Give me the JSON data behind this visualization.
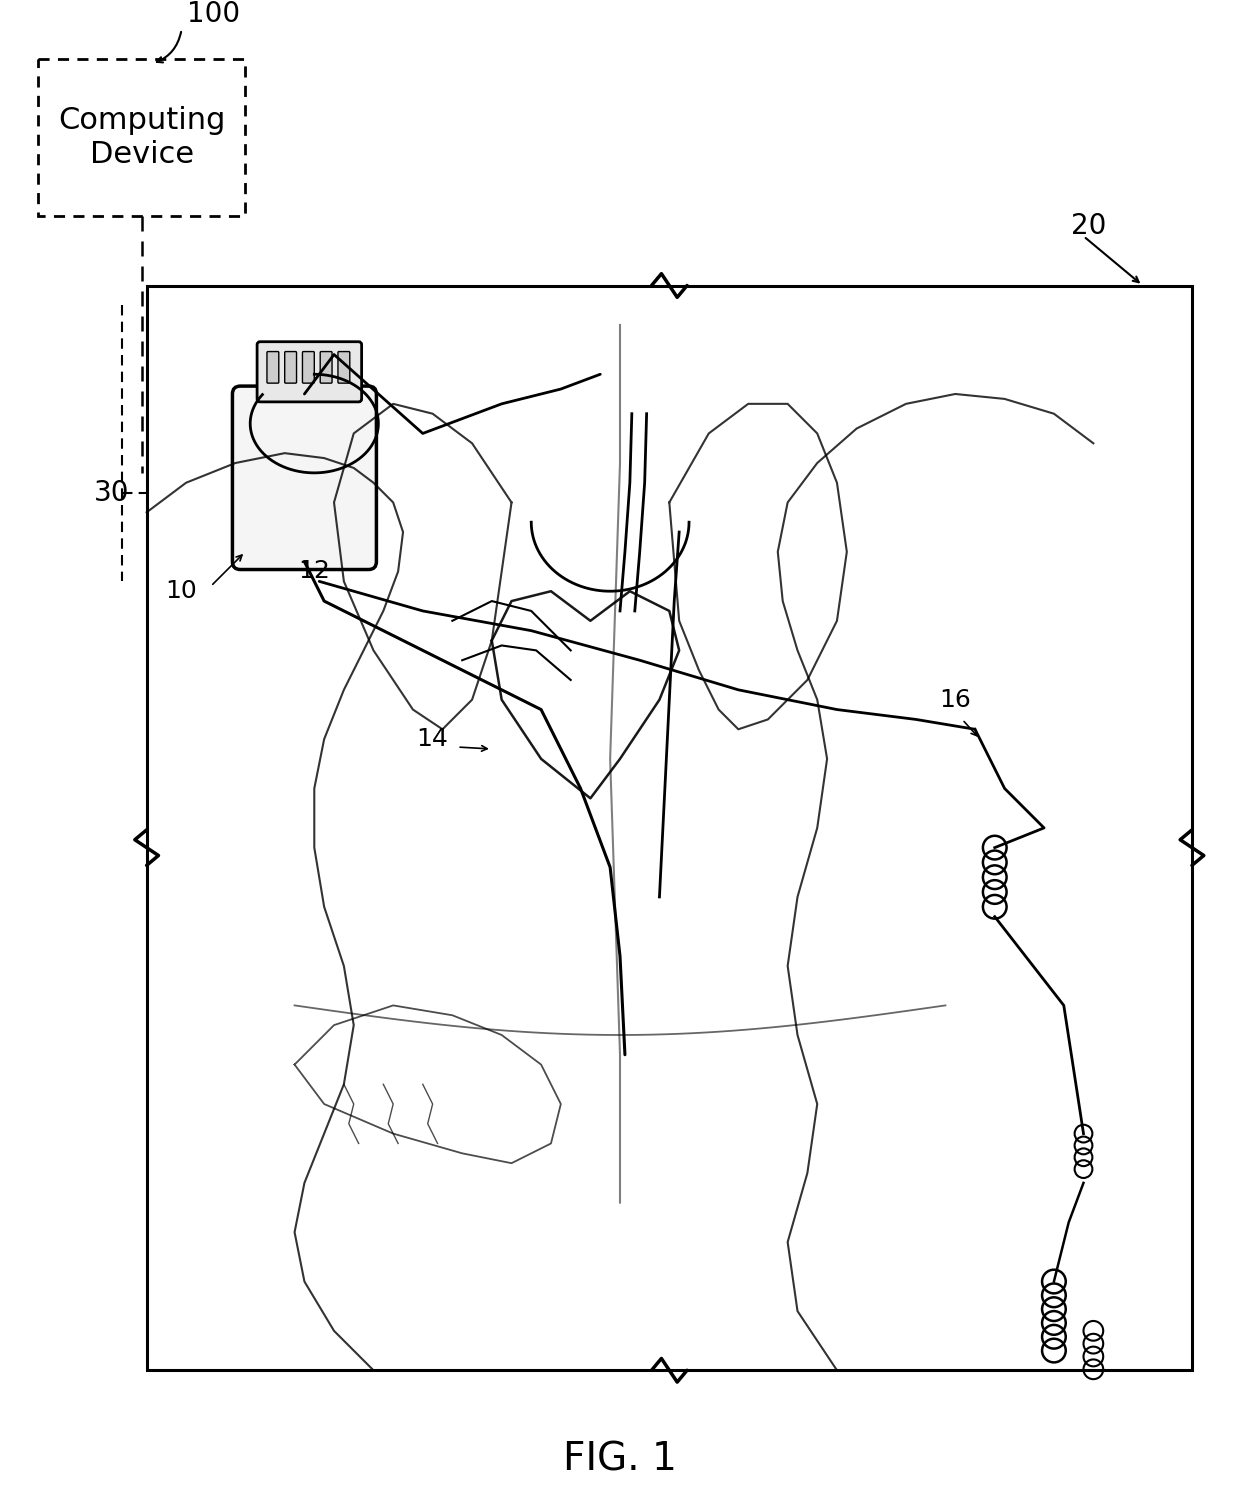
{
  "fig_label": "FIG. 1",
  "bg_color": "#ffffff",
  "box_color": "#000000",
  "label_100": "100",
  "label_20": "20",
  "label_30": "30",
  "label_10": "10",
  "label_12": "12",
  "label_14": "14",
  "label_16": "16",
  "computing_device_text": "Computing\nDevice",
  "figsize": [
    12.4,
    14.91
  ],
  "dpi": 100
}
